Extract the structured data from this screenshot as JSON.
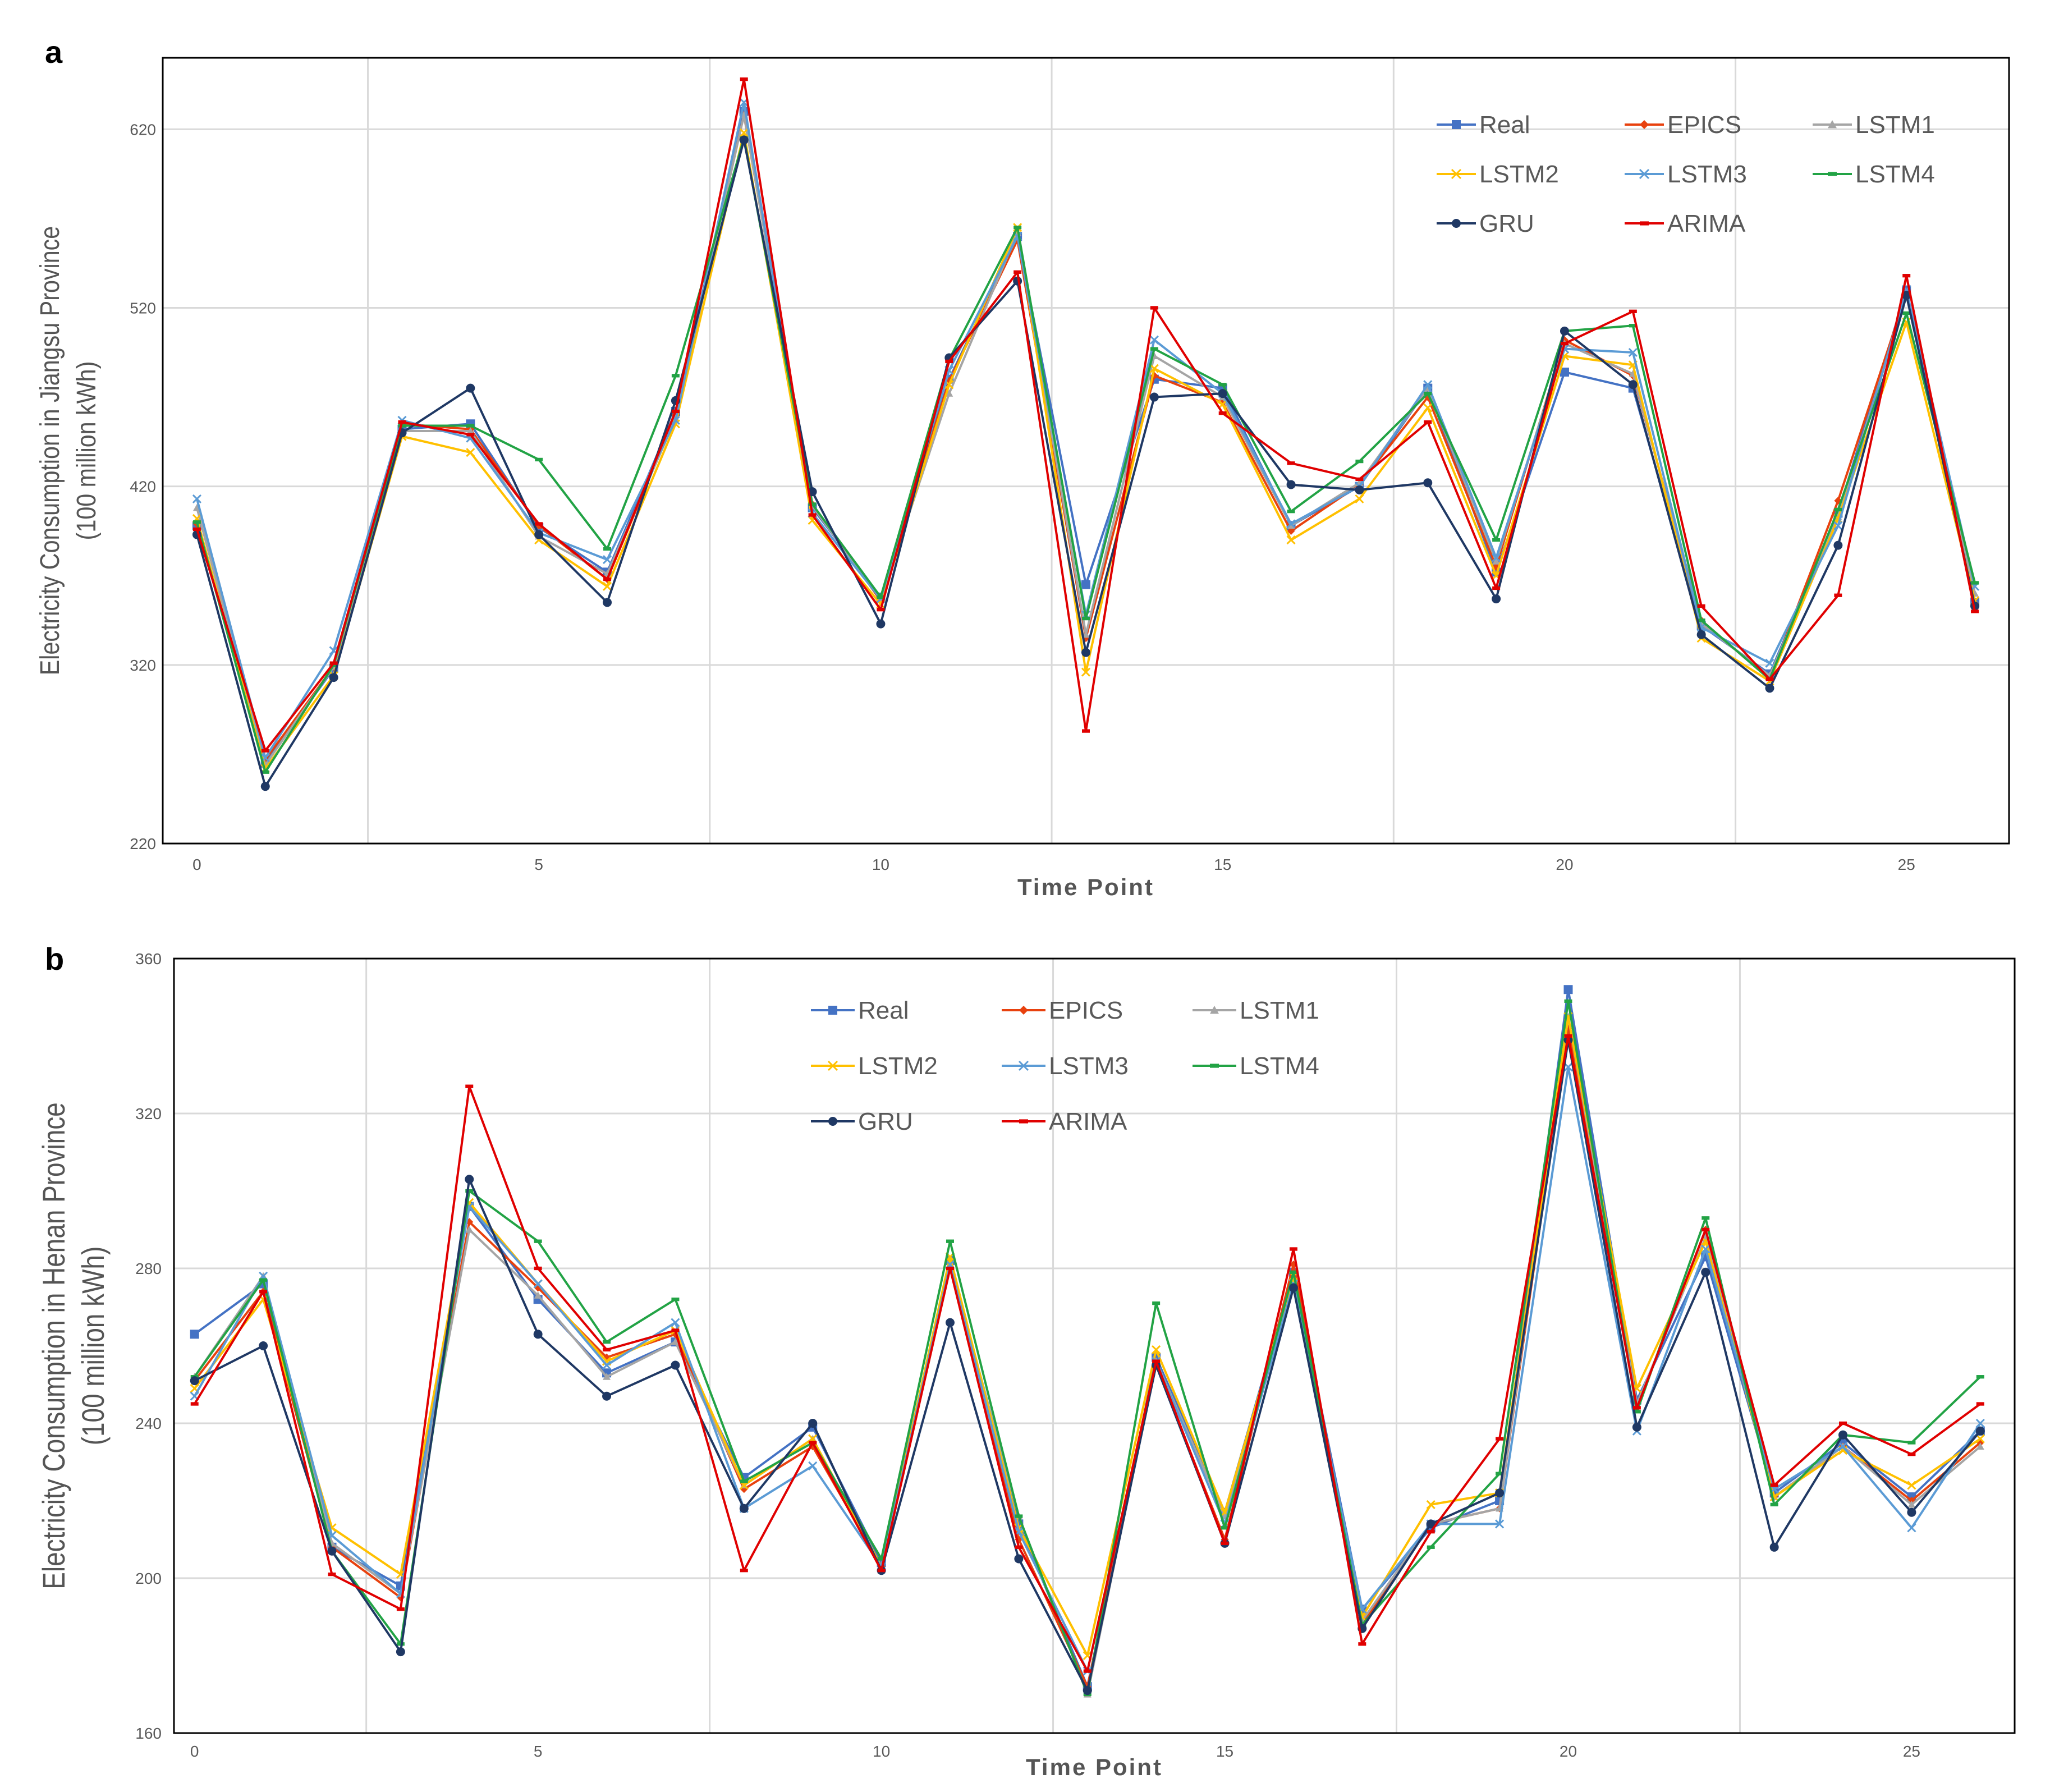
{
  "chart_data": [
    {
      "panel_label": "a",
      "type": "line",
      "xlabel": "Time Point",
      "ylabel_line1": "Electricity Consumption in Jiangsu Province",
      "ylabel_line2": "(100 million kWh)",
      "xlim": [
        -0.5,
        26.5
      ],
      "ylim": [
        220,
        660
      ],
      "yticks": [
        220,
        320,
        420,
        520,
        620
      ],
      "xticks": [
        0,
        5,
        10,
        15,
        20,
        25
      ],
      "grid": true,
      "legend_position": "top-right",
      "x": [
        0,
        1,
        2,
        3,
        4,
        5,
        6,
        7,
        8,
        9,
        10,
        11,
        12,
        13,
        14,
        15,
        16,
        17,
        18,
        19,
        20,
        21,
        22,
        23,
        24,
        25,
        26
      ],
      "series": [
        {
          "name": "Real",
          "color": "#4472C4",
          "marker": "square",
          "values": [
            398,
            265,
            318,
            452,
            455,
            397,
            372,
            462,
            630,
            408,
            358,
            480,
            560,
            365,
            480,
            475,
            398,
            420,
            475,
            372,
            484,
            475,
            342,
            315,
            405,
            530,
            355
          ]
        },
        {
          "name": "EPICS",
          "color": "#E8410E",
          "marker": "diamond",
          "values": [
            399,
            267,
            319,
            455,
            452,
            398,
            368,
            460,
            628,
            410,
            356,
            479,
            558,
            335,
            482,
            467,
            395,
            421,
            470,
            375,
            502,
            482,
            345,
            312,
            412,
            528,
            352
          ]
        },
        {
          "name": "LSTM1",
          "color": "#A5A5A5",
          "marker": "triangle",
          "values": [
            408,
            264,
            319,
            451,
            451,
            392,
            371,
            458,
            628,
            409,
            357,
            472,
            562,
            337,
            493,
            470,
            398,
            422,
            475,
            378,
            500,
            483,
            343,
            314,
            403,
            527,
            360
          ]
        },
        {
          "name": "LSTM2",
          "color": "#FFC000",
          "marker": "x",
          "values": [
            402,
            262,
            314,
            448,
            439,
            390,
            364,
            455,
            618,
            401,
            354,
            477,
            565,
            316,
            486,
            466,
            390,
            413,
            464,
            370,
            493,
            488,
            335,
            311,
            402,
            512,
            356
          ]
        },
        {
          "name": "LSTM3",
          "color": "#5B9BD5",
          "marker": "x",
          "values": [
            413,
            268,
            328,
            457,
            447,
            394,
            379,
            457,
            635,
            405,
            357,
            485,
            560,
            348,
            502,
            472,
            399,
            420,
            477,
            380,
            497,
            495,
            341,
            321,
            398,
            530,
            364
          ]
        },
        {
          "name": "LSTM4",
          "color": "#22A345",
          "marker": "dash",
          "values": [
            400,
            260,
            320,
            454,
            454,
            435,
            385,
            482,
            615,
            410,
            358,
            491,
            565,
            346,
            497,
            477,
            406,
            434,
            472,
            390,
            507,
            510,
            345,
            312,
            407,
            517,
            366
          ]
        },
        {
          "name": "GRU",
          "color": "#1F3864",
          "marker": "circle",
          "values": [
            393,
            252,
            313,
            450,
            475,
            393,
            355,
            468,
            614,
            417,
            343,
            492,
            535,
            327,
            470,
            472,
            421,
            418,
            422,
            357,
            507,
            477,
            337,
            307,
            387,
            527,
            353
          ]
        },
        {
          "name": "ARIMA",
          "color": "#E00000",
          "marker": "dash",
          "values": [
            396,
            272,
            321,
            456,
            449,
            399,
            368,
            462,
            648,
            404,
            351,
            490,
            540,
            283,
            520,
            461,
            433,
            424,
            456,
            363,
            500,
            518,
            353,
            312,
            359,
            538,
            350
          ]
        }
      ]
    },
    {
      "panel_label": "b",
      "type": "line",
      "xlabel": "Time Point",
      "ylabel_line1": "Electricity Consumption in Henan Province",
      "ylabel_line2": "(100 million kWh)",
      "xlim": [
        -0.3,
        26.5
      ],
      "ylim": [
        160,
        360
      ],
      "yticks": [
        160,
        200,
        240,
        280,
        320,
        360
      ],
      "xticks": [
        0,
        5,
        10,
        15,
        20,
        25
      ],
      "grid": true,
      "legend_position": "top-center",
      "x": [
        0,
        1,
        2,
        3,
        4,
        5,
        6,
        7,
        8,
        9,
        10,
        11,
        12,
        13,
        14,
        15,
        16,
        17,
        18,
        19,
        20,
        21,
        22,
        23,
        24,
        25,
        26
      ],
      "series": [
        {
          "name": "Real",
          "color": "#4472C4",
          "marker": "square",
          "values": [
            263,
            276,
            208,
            198,
            296,
            272,
            253,
            261,
            226,
            239,
            204,
            282,
            214,
            172,
            257,
            217,
            279,
            192,
            213,
            220,
            352,
            246,
            283,
            222,
            235,
            221,
            238
          ]
        },
        {
          "name": "EPICS",
          "color": "#E8410E",
          "marker": "diamond",
          "values": [
            251,
            274,
            208,
            195,
            292,
            275,
            257,
            263,
            223,
            234,
            203,
            282,
            210,
            172,
            255,
            210,
            281,
            188,
            214,
            218,
            342,
            244,
            290,
            221,
            234,
            220,
            235
          ]
        },
        {
          "name": "LSTM1",
          "color": "#A5A5A5",
          "marker": "triangle",
          "values": [
            252,
            278,
            209,
            196,
            290,
            273,
            252,
            261,
            224,
            236,
            202,
            281,
            216,
            170,
            256,
            216,
            277,
            189,
            214,
            218,
            345,
            245,
            288,
            221,
            234,
            219,
            234
          ]
        },
        {
          "name": "LSTM2",
          "color": "#FFC000",
          "marker": "x",
          "values": [
            249,
            272,
            213,
            201,
            297,
            276,
            256,
            264,
            224,
            236,
            203,
            283,
            213,
            180,
            259,
            217,
            278,
            190,
            219,
            222,
            345,
            249,
            287,
            221,
            233,
            224,
            236
          ]
        },
        {
          "name": "LSTM3",
          "color": "#5B9BD5",
          "marker": "x",
          "values": [
            247,
            278,
            211,
            196,
            296,
            276,
            255,
            266,
            218,
            229,
            203,
            281,
            212,
            176,
            256,
            214,
            276,
            192,
            214,
            214,
            332,
            238,
            285,
            223,
            234,
            213,
            240
          ]
        },
        {
          "name": "LSTM4",
          "color": "#22A345",
          "marker": "dash",
          "values": [
            252,
            277,
            207,
            183,
            300,
            287,
            261,
            272,
            225,
            235,
            205,
            287,
            216,
            170,
            271,
            213,
            279,
            188,
            208,
            227,
            349,
            243,
            293,
            219,
            237,
            235,
            252
          ]
        },
        {
          "name": "GRU",
          "color": "#1F3864",
          "marker": "circle",
          "values": [
            251,
            260,
            207,
            181,
            303,
            263,
            247,
            255,
            218,
            240,
            202,
            266,
            205,
            171,
            255,
            209,
            275,
            187,
            214,
            222,
            339,
            239,
            279,
            208,
            237,
            217,
            238
          ]
        },
        {
          "name": "ARIMA",
          "color": "#E00000",
          "marker": "dash",
          "values": [
            245,
            274,
            201,
            192,
            327,
            280,
            259,
            264,
            202,
            235,
            202,
            280,
            208,
            176,
            256,
            209,
            285,
            183,
            212,
            236,
            340,
            244,
            290,
            224,
            240,
            232,
            245
          ]
        }
      ]
    }
  ]
}
